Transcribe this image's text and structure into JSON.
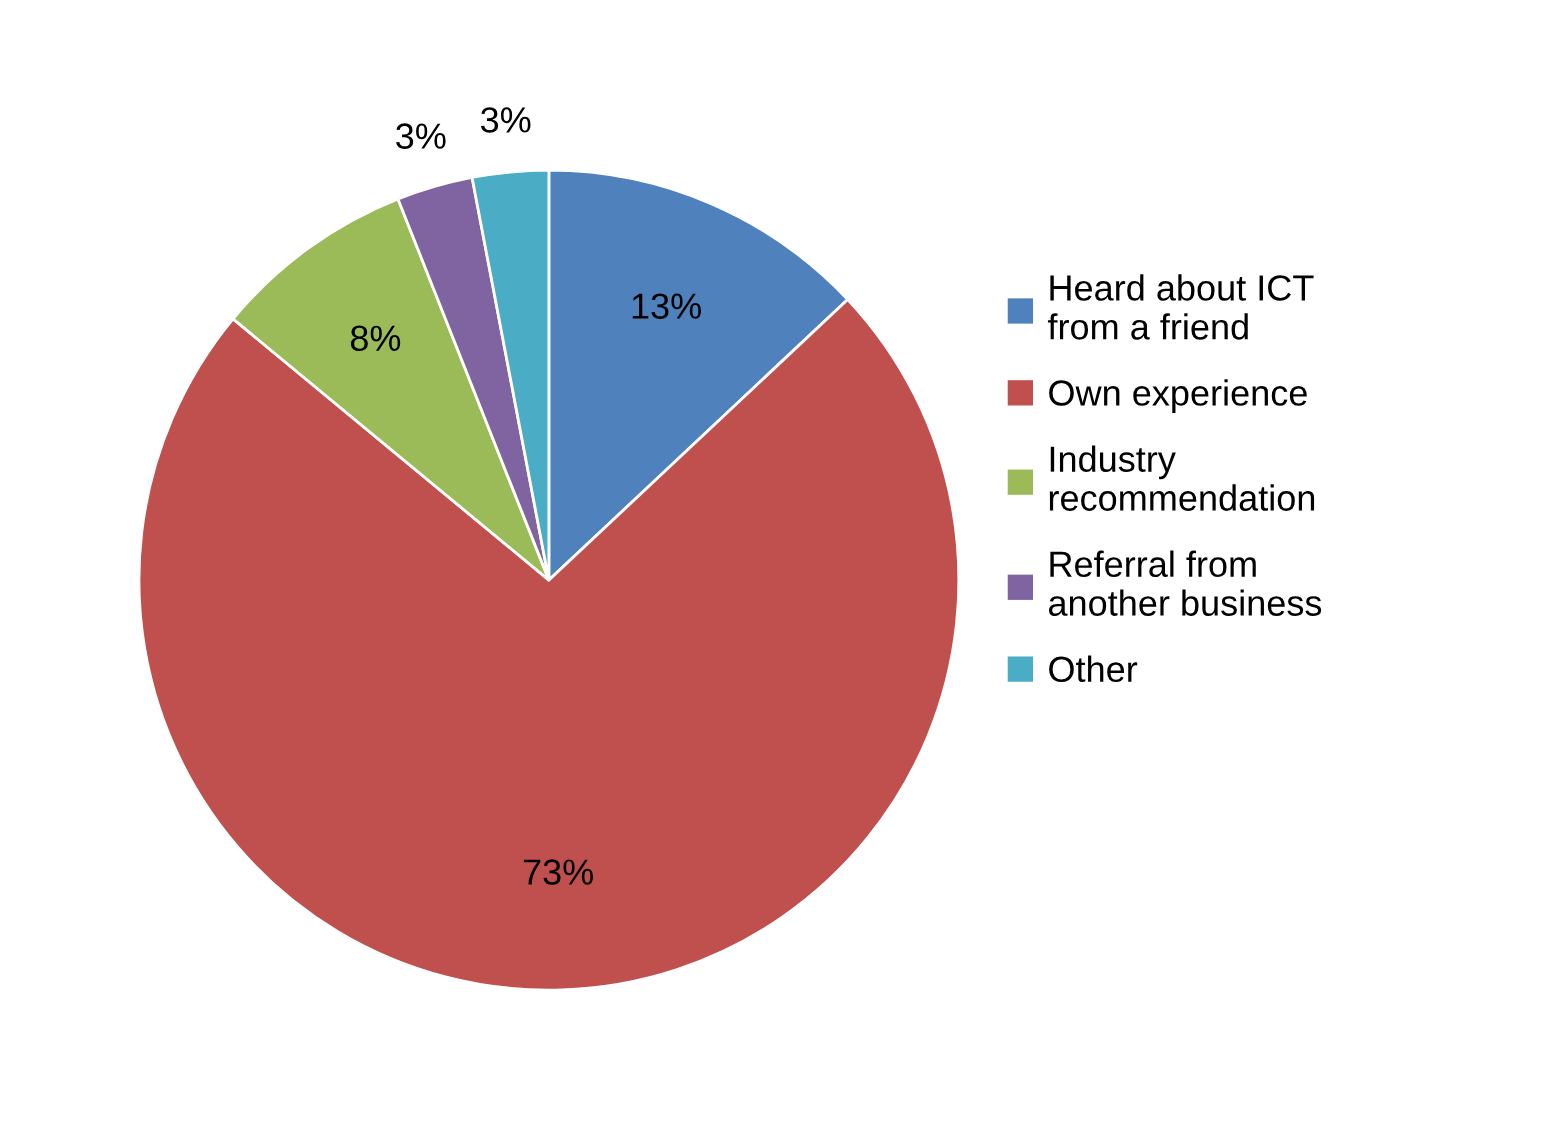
{
  "chart_data": {
    "type": "pie",
    "categories": [
      "Heard about ICT\nfrom a friend",
      "Own experience",
      "Industry\nrecommendation",
      "Referral from\nanother business",
      "Other"
    ],
    "values": [
      13,
      73,
      8,
      3,
      3
    ],
    "value_labels": [
      "13%",
      "73%",
      "8%",
      "3%",
      "3%"
    ],
    "colors": [
      "#4f81bd",
      "#c0504d",
      "#9bbb59",
      "#8064a2",
      "#4bacc6"
    ],
    "legend": "right"
  }
}
